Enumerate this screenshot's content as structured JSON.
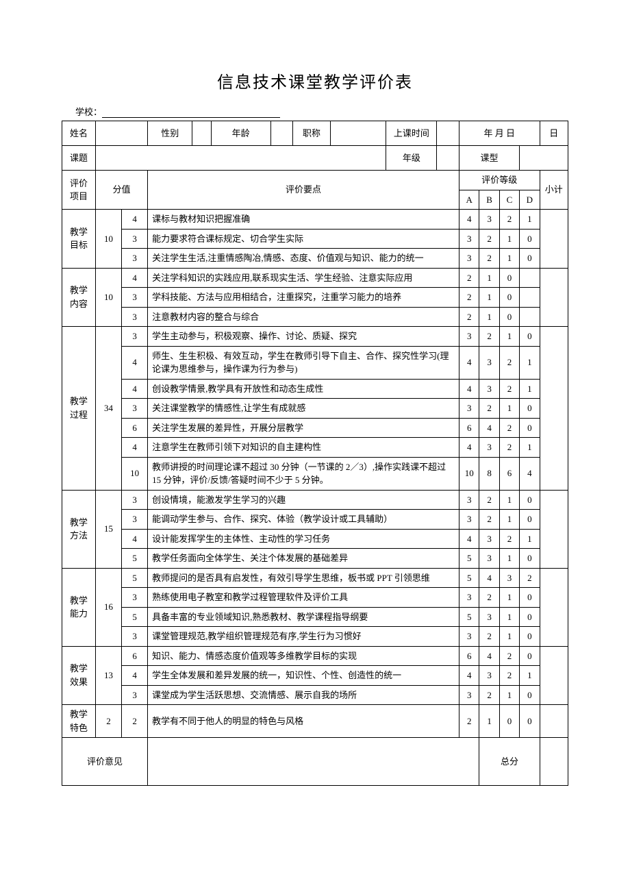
{
  "title": "信息技术课堂教学评价表",
  "school_label": "学校：",
  "header": {
    "name": "姓名",
    "gender": "性别",
    "age": "年龄",
    "title_rank": "职称",
    "class_time": "上课时间",
    "date": "年 月    日",
    "subject": "课题",
    "grade": "年级",
    "class_type": "课型"
  },
  "cols": {
    "eval_item": "评价\n项目",
    "score": "分值",
    "eval_points": "评价要点",
    "eval_level": "评价等级",
    "A": "A",
    "B": "B",
    "C": "C",
    "D": "D",
    "subtotal": "小计"
  },
  "sections": [
    {
      "name": "教学\n目标",
      "total": "10",
      "rows": [
        {
          "pts": "4",
          "desc": "课标与教材知识把握准确",
          "g": [
            "4",
            "3",
            "2",
            "1"
          ]
        },
        {
          "pts": "3",
          "desc": "能力要求符合课标规定、切合学生实际",
          "g": [
            "3",
            "2",
            "1",
            "0"
          ]
        },
        {
          "pts": "3",
          "desc": "关注学生生活,注重情感陶冶,情感、态度、价值观与知识、能力的统一",
          "g": [
            "3",
            "2",
            "1",
            "0"
          ]
        }
      ]
    },
    {
      "name": "教学\n内容",
      "total": "10",
      "rows": [
        {
          "pts": "4",
          "desc": "关注学科知识的实践应用,联系现实生活、学生经验、注意实际应用",
          "g": [
            "2",
            "1",
            "0",
            ""
          ]
        },
        {
          "pts": "3",
          "desc": "学科技能、方法与应用相结合，注重探究，注重学习能力的培养",
          "g": [
            "2",
            "1",
            "0",
            ""
          ]
        },
        {
          "pts": "3",
          "desc": "注意教材内容的整合与综合",
          "g": [
            "2",
            "1",
            "0",
            ""
          ]
        }
      ]
    },
    {
      "name": "教学\n过程",
      "total": "34",
      "rows": [
        {
          "pts": "3",
          "desc": "学生主动参与，积极观察、操作、讨论、质疑、探究",
          "g": [
            "3",
            "2",
            "1",
            "0"
          ]
        },
        {
          "pts": "4",
          "desc": "师生、生生积极、有效互动，学生在教师引导下自主、合作、探究性学习(理论课为思维参与，操作课为行为参与)",
          "g": [
            "4",
            "3",
            "2",
            "1"
          ]
        },
        {
          "pts": "4",
          "desc": "创设教学情景,教学具有开放性和动态生成性",
          "g": [
            "4",
            "3",
            "2",
            "1"
          ]
        },
        {
          "pts": "3",
          "desc": "关注课堂教学的情感性,让学生有成就感",
          "g": [
            "3",
            "2",
            "1",
            "0"
          ]
        },
        {
          "pts": "6",
          "desc": "关注学生发展的差异性，开展分层教学",
          "g": [
            "6",
            "4",
            "2",
            "0"
          ]
        },
        {
          "pts": "4",
          "desc": "注意学生在教师引领下对知识的自主建构性",
          "g": [
            "4",
            "3",
            "2",
            "1"
          ]
        },
        {
          "pts": "10",
          "desc": "教师讲授的时间理论课不超过 30 分钟（一节课的 2／3）,操作实践课不超过 15 分钟，评价/反馈/答疑时间不少于 5 分钟。",
          "g": [
            "10",
            "8",
            "6",
            "4"
          ]
        }
      ]
    },
    {
      "name": "教学\n方法",
      "total": "15",
      "rows": [
        {
          "pts": "3",
          "desc": "创设情境，能激发学生学习的兴趣",
          "g": [
            "3",
            "2",
            "1",
            "0"
          ]
        },
        {
          "pts": "3",
          "desc": "能调动学生参与、合作、探究、体验（教学设计或工具辅助）",
          "g": [
            "3",
            "2",
            "1",
            "0"
          ]
        },
        {
          "pts": "4",
          "desc": "设计能发挥学生的主体性、主动性的学习任务",
          "g": [
            "4",
            "3",
            "2",
            "1"
          ]
        },
        {
          "pts": "5",
          "desc": "教学任务面向全体学生、关注个体发展的基础差异",
          "g": [
            "5",
            "3",
            "1",
            "0"
          ]
        }
      ]
    },
    {
      "name": "教学\n能力",
      "total": "16",
      "rows": [
        {
          "pts": "5",
          "desc": "教师提问的是否具有启发性，有效引导学生思维，板书或 PPT 引领思维",
          "g": [
            "5",
            "4",
            "3",
            "2"
          ]
        },
        {
          "pts": "3",
          "desc": "熟练使用电子教室和教学过程管理软件及评价工具",
          "g": [
            "3",
            "2",
            "1",
            "0"
          ]
        },
        {
          "pts": "5",
          "desc": "具备丰富的专业领域知识,熟悉教材、教学课程指导纲要",
          "g": [
            "5",
            "3",
            "1",
            "0"
          ]
        },
        {
          "pts": "3",
          "desc": "课堂管理规范,教学组织管理规范有序,学生行为习惯好",
          "g": [
            "3",
            "2",
            "1",
            "0"
          ]
        }
      ]
    },
    {
      "name": "教学\n效果",
      "total": "13",
      "rows": [
        {
          "pts": "6",
          "desc": "知识、能力、情感态度价值观等多维教学目标的实现",
          "g": [
            "6",
            "4",
            "2",
            "0"
          ]
        },
        {
          "pts": "4",
          "desc": "学生全体发展和差异发展的统一，知识性、个性、创造性的统一",
          "g": [
            "4",
            "3",
            "2",
            "1"
          ]
        },
        {
          "pts": "3",
          "desc": "课堂成为学生活跃思想、交流情感、展示自我的场所",
          "g": [
            "3",
            "2",
            "1",
            "0"
          ]
        }
      ]
    },
    {
      "name": "教学\n特色",
      "total": "2",
      "rows": [
        {
          "pts": "2",
          "desc": "教学有不同于他人的明显的特色与风格",
          "g": [
            "2",
            "1",
            "0",
            "0"
          ]
        }
      ]
    }
  ],
  "footer": {
    "opinion": "评价意见",
    "total_score": "总分"
  }
}
